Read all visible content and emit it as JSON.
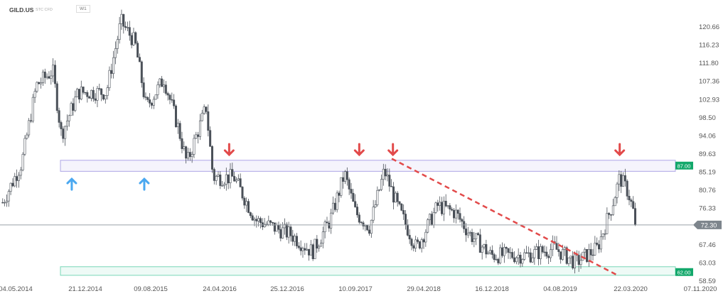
{
  "header": {
    "symbol": "GILD.US",
    "type": "STC CFD",
    "timeframe": "W1"
  },
  "chart_data": {
    "type": "candlestick",
    "y_ticks": [
      "120.66",
      "116.23",
      "111.80",
      "107.36",
      "102.93",
      "98.50",
      "94.06",
      "89.63",
      "85.19",
      "80.76",
      "76.33",
      "67.46",
      "63.03",
      "58.59"
    ],
    "ylim": [
      58.59,
      120.66
    ],
    "x_ticks": [
      "04.05.2014",
      "21.12.2014",
      "09.08.2015",
      "24.04.2016",
      "25.12.2016",
      "10.09.2017",
      "29.04.2018",
      "16.12.2018",
      "04.08.2019",
      "22.03.2020",
      "07.11.2020"
    ],
    "close_path": [
      [
        "2014-03-20",
        77.8
      ],
      [
        "2014-05-25",
        87.4
      ],
      [
        "2014-07-15",
        106.4
      ],
      [
        "2014-09-10",
        110
      ],
      [
        "2014-10-10",
        94.3
      ],
      [
        "2014-12-07",
        104.7
      ],
      [
        "2015-03-15",
        104.7
      ],
      [
        "2015-05-05",
        122
      ],
      [
        "2015-06-23",
        116.8
      ],
      [
        "2015-08-01",
        101
      ],
      [
        "2015-10-01",
        108
      ],
      [
        "2015-11-20",
        96
      ],
      [
        "2015-12-20",
        87.4
      ],
      [
        "2016-02-25",
        101
      ],
      [
        "2016-03-20",
        83.9
      ],
      [
        "2016-06-01",
        83.9
      ],
      [
        "2016-08-15",
        73.5
      ],
      [
        "2016-12-15",
        70
      ],
      [
        "2017-02-28",
        65.7
      ],
      [
        "2017-05-01",
        73.5
      ],
      [
        "2017-06-20",
        84.8
      ],
      [
        "2017-07-28",
        75.3
      ],
      [
        "2017-09-15",
        71.8
      ],
      [
        "2017-11-05",
        85.6
      ],
      [
        "2017-12-20",
        77
      ],
      [
        "2018-02-25",
        66.6
      ],
      [
        "2018-05-10",
        77
      ],
      [
        "2018-07-10",
        75.3
      ],
      [
        "2018-08-30",
        70
      ],
      [
        "2018-11-10",
        64.9
      ],
      [
        "2019-03-15",
        64.9
      ],
      [
        "2019-06-20",
        66.6
      ],
      [
        "2019-09-01",
        63.1
      ],
      [
        "2019-11-15",
        66.6
      ],
      [
        "2020-01-05",
        77
      ],
      [
        "2020-02-01",
        83.9
      ],
      [
        "2020-03-01",
        80.4
      ],
      [
        "2020-04-01",
        72.3
      ]
    ],
    "last_price": "72.30",
    "zones": [
      {
        "label": "87.00",
        "top": 88.1,
        "bottom": 85.4,
        "color": "#7b6fd6"
      },
      {
        "label": "62.00",
        "top": 62.1,
        "bottom": 60.0,
        "color": "#26c08a"
      }
    ],
    "trendline": {
      "from": [
        "2017-12-01",
        88.5
      ],
      "to": [
        "2020-01-25",
        60.0
      ],
      "color": "#e24a4a"
    },
    "up_arrows": [
      "2014-11-15",
      "2015-07-25"
    ],
    "down_arrows": [
      "2016-05-15",
      "2017-08-10",
      "2017-12-05",
      "2020-02-01"
    ],
    "colors": {
      "up": "#ffffff",
      "down": "#4a5058",
      "up_arrow": "#4aa8f0",
      "down_arrow": "#e24a4a",
      "label_green": "#13a86b",
      "price_tag": "#7d858c"
    }
  }
}
